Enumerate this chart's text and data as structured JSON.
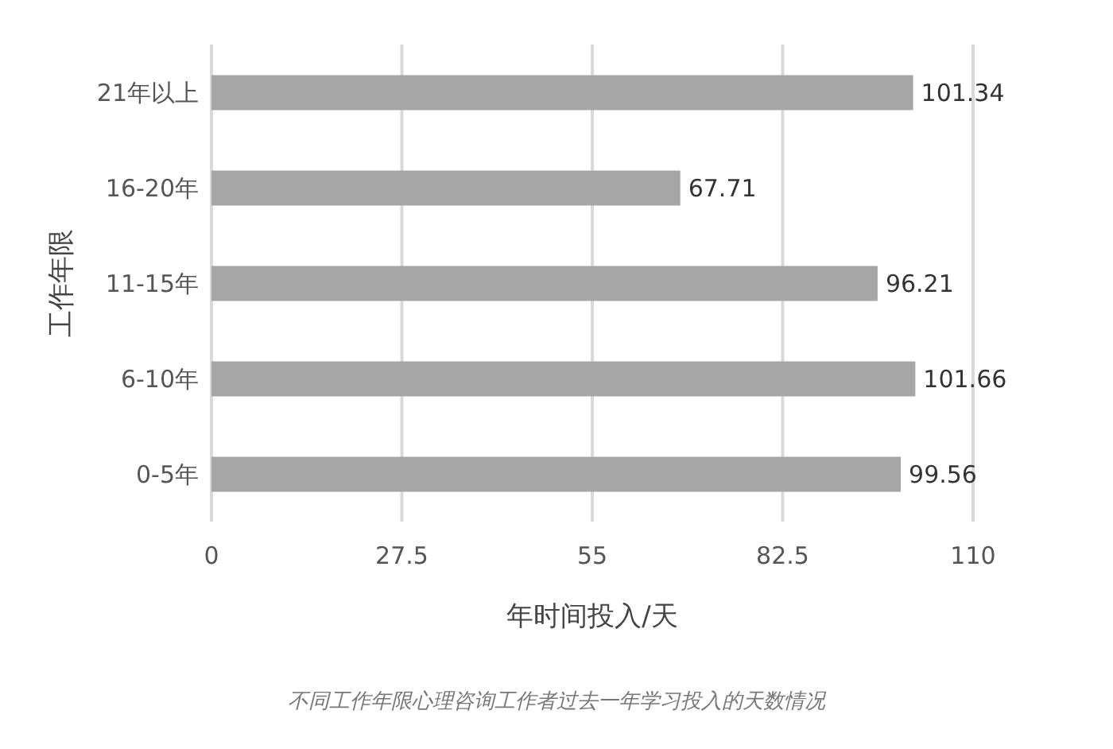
{
  "chart_data": {
    "type": "bar",
    "orientation": "horizontal",
    "categories": [
      "21年以上",
      "16-20年",
      "11-15年",
      "6-10年",
      "0-5年"
    ],
    "values": [
      101.34,
      67.71,
      96.21,
      101.66,
      99.56
    ],
    "color": "#a6a6a6",
    "xlim": [
      0,
      110
    ],
    "xticks": [
      0,
      27.5,
      55,
      82.5,
      110
    ],
    "grid": "x",
    "data_labels": true,
    "xlabel": "年时间投入/天",
    "ylabel": "工作年限",
    "annotations": [
      "不同工作年限心理咨询工作者过去一年学习投入的天数情况"
    ]
  }
}
